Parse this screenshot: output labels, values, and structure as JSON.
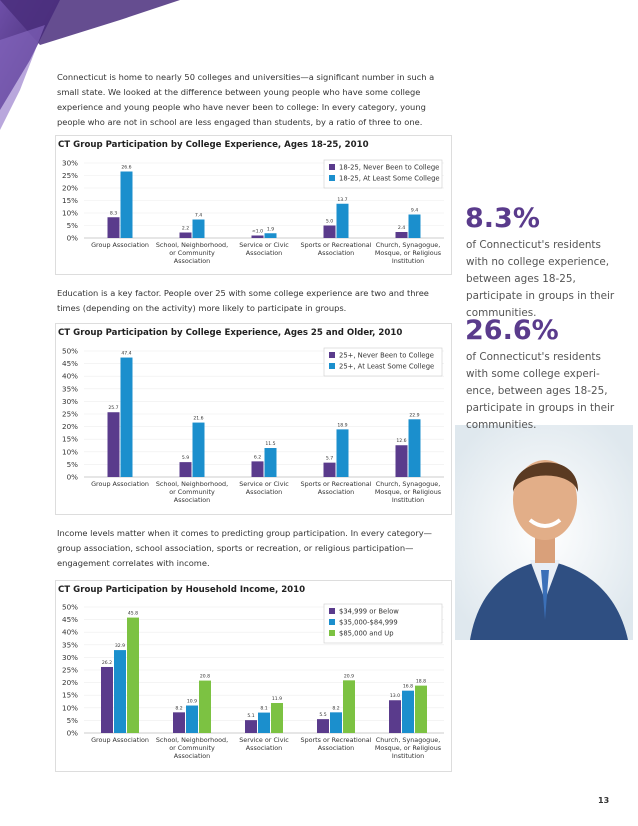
{
  "intro": "Connecticut is home to nearly 50 colleges and universities—a significant number in such a small state. We looked at the difference between young people who have some college experience and young people who have never been to college: In every category, young people who are not in school are less engaged than students, by a ratio of three to one.",
  "middle": "Education is a key factor. People over 25 with some college experience are two and three times (depending on the activity) more likely to participate in groups.",
  "lower": "Income levels matter when it comes to predicting group participation. In every category—group association, school association, sports or recreation, or religious participation—engagement correlates with income.",
  "chart_data": [
    {
      "type": "bar",
      "title": "CT Group Participation by College Experience, Ages 18-25, 2010",
      "categories": [
        "Group Association",
        "School, Neighborhood, or Community Association",
        "Service or Civic Association",
        "Sports or Recreational Association",
        "Church, Synagogue, Mosque, or Religious Institution"
      ],
      "series": [
        {
          "name": "18-25, Never Been to College",
          "color": "#5a3b8c",
          "values": [
            8.3,
            2.2,
            1.0,
            5.0,
            2.4
          ],
          "value_labels": [
            "8.3",
            "2.2",
            "<1.0",
            "5.0",
            "2.4"
          ]
        },
        {
          "name": "18-25, At Least Some College",
          "color": "#1b8fcd",
          "values": [
            26.6,
            7.4,
            1.9,
            13.7,
            9.4
          ],
          "value_labels": [
            "26.6",
            "7.4",
            "1.9",
            "13.7",
            "9.4"
          ]
        }
      ],
      "ylim": [
        0,
        30
      ],
      "yticks": [
        {
          "value": 0,
          "label": "0%"
        },
        {
          "value": 5,
          "label": "5%"
        },
        {
          "value": 10,
          "label": "10%"
        },
        {
          "value": 15,
          "label": "15%"
        },
        {
          "value": 20,
          "label": "20%"
        },
        {
          "value": 25,
          "label": "25%"
        },
        {
          "value": 30,
          "label": "30%"
        }
      ],
      "legend": "upper right"
    },
    {
      "type": "bar",
      "title": "CT Group Participation by College Experience, Ages 25 and Older, 2010",
      "categories": [
        "Group Association",
        "School, Neighborhood, or Community Association",
        "Service or Civic Association",
        "Sports or Recreational Association",
        "Church, Synagogue, Mosque, or Religious Institution"
      ],
      "series": [
        {
          "name": "25+, Never Been to College",
          "color": "#5a3b8c",
          "values": [
            25.7,
            5.9,
            6.2,
            5.7,
            12.6
          ],
          "value_labels": [
            "25.7",
            "5.9",
            "6.2",
            "5.7",
            "12.6"
          ]
        },
        {
          "name": "25+, At Least Some College",
          "color": "#1b8fcd",
          "values": [
            47.4,
            21.6,
            11.5,
            18.9,
            22.9
          ],
          "value_labels": [
            "47.4",
            "21.6",
            "11.5",
            "18.9",
            "22.9"
          ]
        }
      ],
      "ylim": [
        0,
        50
      ],
      "yticks": [
        {
          "value": 0,
          "label": "0%"
        },
        {
          "value": 5,
          "label": "5%"
        },
        {
          "value": 10,
          "label": "10%"
        },
        {
          "value": 15,
          "label": "15%"
        },
        {
          "value": 20,
          "label": "20%"
        },
        {
          "value": 25,
          "label": "25%"
        },
        {
          "value": 30,
          "label": "30%"
        },
        {
          "value": 35,
          "label": "35%"
        },
        {
          "value": 40,
          "label": "40%"
        },
        {
          "value": 45,
          "label": "45%"
        },
        {
          "value": 50,
          "label": "50%"
        }
      ],
      "legend": "upper right"
    },
    {
      "type": "bar",
      "title": "CT Group Participation by Household Income, 2010",
      "categories": [
        "Group Association",
        "School, Neighborhood, or Community Association",
        "Service or Civic Association",
        "Sports or Recreational Association",
        "Church, Synagogue, Mosque, or Religious Institution"
      ],
      "series": [
        {
          "name": "$34,999 or Below",
          "color": "#5a3b8c",
          "values": [
            26.2,
            8.2,
            5.1,
            5.5,
            13.0
          ],
          "value_labels": [
            "26.2",
            "8.2",
            "5.1",
            "5.5",
            "13.0"
          ]
        },
        {
          "name": "$35,000-$84,999",
          "color": "#1b8fcd",
          "values": [
            32.9,
            10.9,
            8.1,
            8.2,
            16.8
          ],
          "value_labels": [
            "32.9",
            "10.9",
            "8.1",
            "8.2",
            "16.8"
          ]
        },
        {
          "name": "$85,000 and Up",
          "color": "#7cc242",
          "values": [
            45.8,
            20.8,
            11.9,
            20.9,
            18.8
          ],
          "value_labels": [
            "45.8",
            "20.8",
            "11.9",
            "20.9",
            "18.8"
          ]
        }
      ],
      "ylim": [
        0,
        50
      ],
      "yticks": [
        {
          "value": 0,
          "label": "0%"
        },
        {
          "value": 5,
          "label": "5%"
        },
        {
          "value": 10,
          "label": "10%"
        },
        {
          "value": 15,
          "label": "15%"
        },
        {
          "value": 20,
          "label": "20%"
        },
        {
          "value": 25,
          "label": "25%"
        },
        {
          "value": 30,
          "label": "30%"
        },
        {
          "value": 35,
          "label": "35%"
        },
        {
          "value": 40,
          "label": "40%"
        },
        {
          "value": 45,
          "label": "45%"
        },
        {
          "value": 50,
          "label": "50%"
        }
      ],
      "legend": "upper right"
    }
  ],
  "sidebar": [
    {
      "stat": "8.3%",
      "text": "of Connecticut's residents with no college experience, between ages 18-25, participate in groups in their communities."
    },
    {
      "stat": "26.6%",
      "text": "of Connecticut's residents with some college experi-ence, between ages 18-25, participate in groups in their communities."
    }
  ],
  "page_number": "13"
}
